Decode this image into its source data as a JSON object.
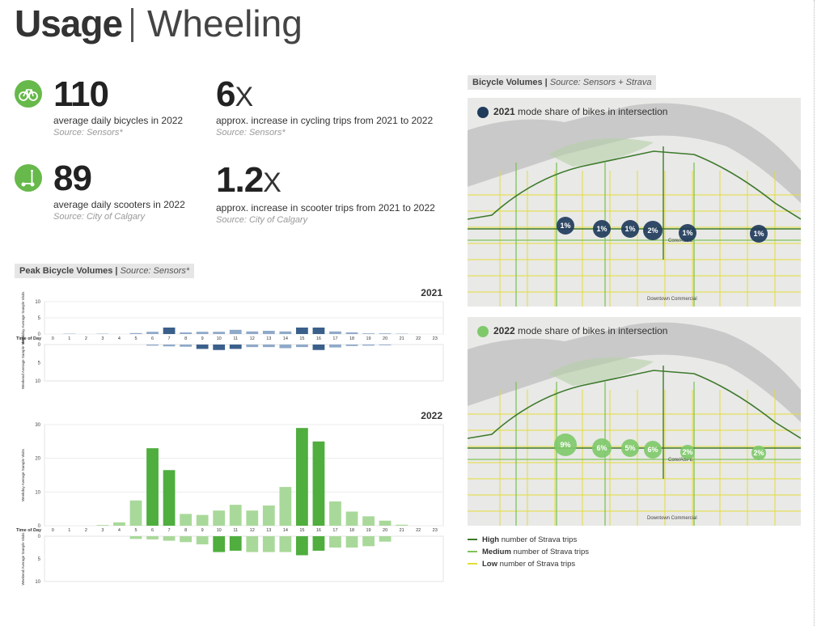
{
  "header": {
    "title_main": "Usage",
    "title_sub": "Wheeling"
  },
  "stats": [
    {
      "value": "110",
      "suffix": "",
      "label": "average daily bicycles in 2022",
      "source": "Source: Sensors*",
      "icon": "bicycle-icon"
    },
    {
      "value": "6",
      "suffix": "X",
      "label": "approx. increase in cycling trips from 2021 to 2022",
      "source": "Source: Sensors*"
    },
    {
      "value": "89",
      "suffix": "",
      "label": "average daily scooters in 2022",
      "source": "Source: City of Calgary",
      "icon": "scooter-icon"
    },
    {
      "value": "1.2",
      "suffix": "X",
      "label": "approx. increase in scooter trips from 2021 to 2022",
      "source": "Source: City of Calgary"
    }
  ],
  "peak_section": {
    "label": "Peak Bicycle Volumes",
    "source": "Source: Sensors*"
  },
  "map_section": {
    "label": "Bicycle Volumes",
    "source": "Source: Sensors + Strava"
  },
  "maps": [
    {
      "year": "2021",
      "caption": "mode share of bikes in intersection",
      "dot_color": "#1f3b5c",
      "bubbles": [
        "1%",
        "1%",
        "1%",
        "2%",
        "1%",
        "1%"
      ],
      "labels": [
        "Downtown Commercial",
        "Core/ASPE"
      ]
    },
    {
      "year": "2022",
      "caption": "mode share of bikes in intersection",
      "dot_color": "#7fc96b",
      "bubbles": [
        "9%",
        "6%",
        "5%",
        "6%",
        "2%",
        "2%"
      ],
      "labels": [
        "Downtown Commercial",
        "Core/ASPE"
      ]
    }
  ],
  "legend": [
    {
      "bold": "High",
      "text": "number of Strava trips",
      "color": "#3d7a2c"
    },
    {
      "bold": "Medium",
      "text": "number of Strava trips",
      "color": "#7fc35a"
    },
    {
      "bold": "Low",
      "text": "number of Strava trips",
      "color": "#e3dd3a"
    }
  ],
  "colors": {
    "accent_green": "#66b94a",
    "dark_blue": "#3a5f8a",
    "light_blue": "#8fa9c9",
    "dark_green": "#4fae3e",
    "light_green": "#a9d99a"
  },
  "chart_data": [
    {
      "type": "bar",
      "title": "2021",
      "x_label": "Time of Day",
      "weekday_label": "Weekday Average Sample Visits",
      "weekend_label": "Weekend Average Sample Visits",
      "categories": [
        0,
        1,
        2,
        3,
        4,
        5,
        6,
        7,
        8,
        9,
        10,
        11,
        12,
        13,
        14,
        15,
        16,
        17,
        18,
        19,
        20,
        21,
        22,
        23
      ],
      "weekday_ticks": [
        0,
        5,
        10
      ],
      "weekend_ticks": [
        0,
        5,
        10
      ],
      "ylim": [
        0,
        10
      ],
      "series": [
        {
          "name": "Weekday",
          "values": [
            0,
            0.1,
            0,
            0.1,
            0,
            0.3,
            0.7,
            2,
            0.5,
            0.7,
            0.7,
            1.3,
            0.8,
            1,
            0.8,
            2,
            2,
            0.8,
            0.5,
            0.2,
            0.2,
            0.1,
            0,
            0
          ]
        },
        {
          "name": "Weekend",
          "values": [
            0,
            0,
            0,
            0,
            0,
            0,
            0.3,
            0.5,
            0.6,
            1.2,
            1.5,
            1.2,
            0.7,
            0.7,
            1,
            0.7,
            1.5,
            0.8,
            0.4,
            0.3,
            0.2,
            0,
            0,
            0
          ]
        }
      ]
    },
    {
      "type": "bar",
      "title": "2022",
      "x_label": "Time of Day",
      "weekday_label": "Weekday Average Sample Visits",
      "weekend_label": "Weekend Average Sample Visits",
      "categories": [
        0,
        1,
        2,
        3,
        4,
        5,
        6,
        7,
        8,
        9,
        10,
        11,
        12,
        13,
        14,
        15,
        16,
        17,
        18,
        19,
        20,
        21,
        22,
        23
      ],
      "weekday_ticks": [
        0,
        10,
        20,
        30
      ],
      "weekend_ticks": [
        0,
        5,
        10
      ],
      "ylim": [
        0,
        30
      ],
      "series": [
        {
          "name": "Weekday",
          "values": [
            0,
            0,
            0,
            0.2,
            1,
            7.5,
            23,
            16.5,
            3.5,
            3.2,
            4.5,
            6.2,
            4.5,
            6,
            11.5,
            29,
            25,
            7.2,
            4.2,
            2.8,
            1.5,
            0.3,
            0,
            0
          ]
        },
        {
          "name": "Weekend",
          "values": [
            0,
            0,
            0,
            0,
            0,
            0.6,
            0.7,
            1,
            1.3,
            1.8,
            3.5,
            3.2,
            3.5,
            3.5,
            3.5,
            4.2,
            3.2,
            2.5,
            2.5,
            2.2,
            1.2,
            0,
            0,
            0
          ]
        }
      ]
    }
  ]
}
